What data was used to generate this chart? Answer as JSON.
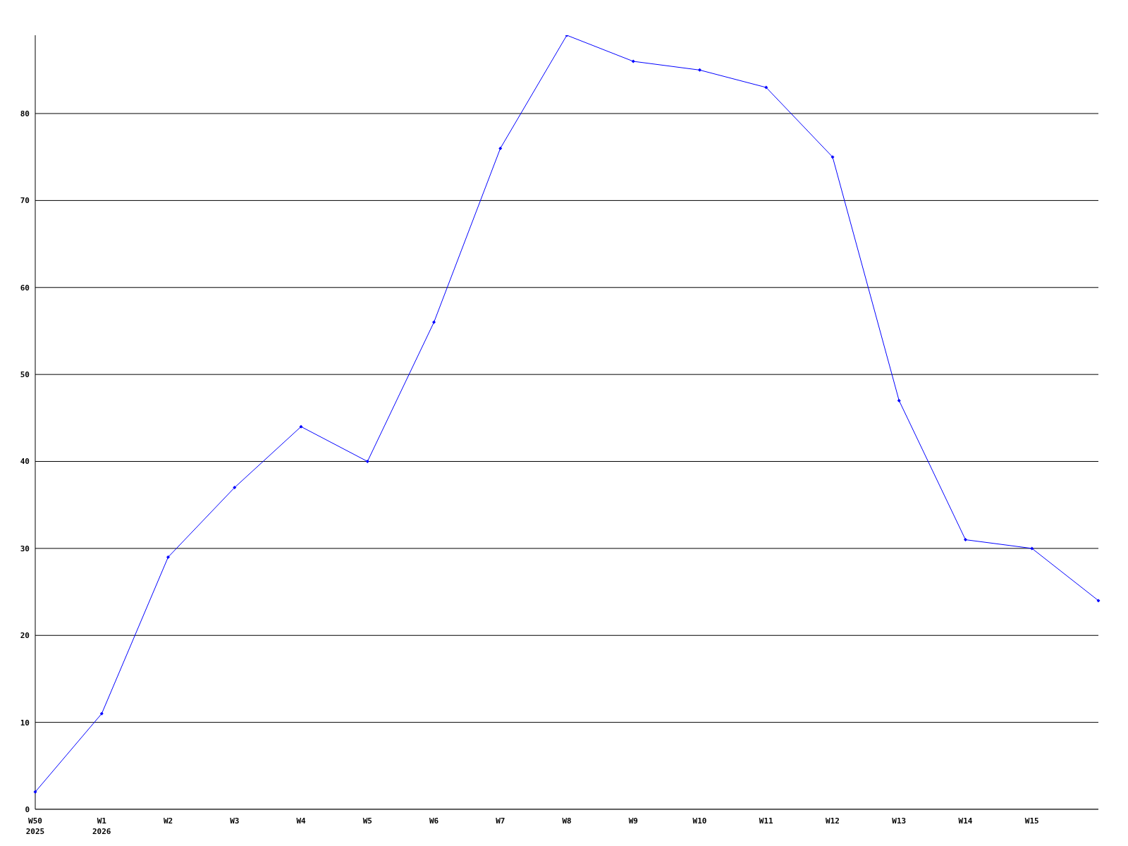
{
  "chart_data": {
    "type": "line",
    "categories": [
      "W50\n2025",
      "W1\n2026",
      "W2",
      "W3",
      "W4",
      "W5",
      "W6",
      "W7",
      "W8",
      "W9",
      "W10",
      "W11",
      "W12",
      "W13",
      "W14",
      "W15",
      null
    ],
    "series": [
      {
        "color": "#0000ff",
        "values": [
          2,
          11,
          29,
          37,
          44,
          40,
          56,
          76,
          89,
          86,
          85,
          83,
          75,
          47,
          31,
          30,
          24
        ]
      }
    ],
    "ylim": [
      0,
      89
    ],
    "yticks": [
      0,
      10,
      20,
      30,
      40,
      50,
      60,
      70,
      80
    ],
    "grid": "y",
    "marker": "diamond",
    "line_style": "solid",
    "legend": false
  }
}
